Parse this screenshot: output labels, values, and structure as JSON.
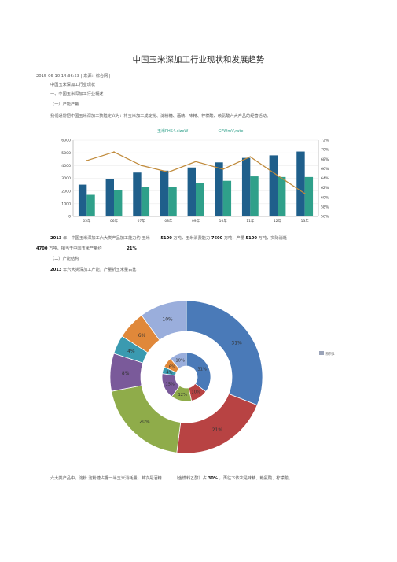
{
  "doc": {
    "title": "中国玉米深加工行业现状和发展趋势",
    "meta": "2015-06-10 14:36:53 | 来源：综合网 |",
    "heading1": "中国玉米深加工行业现状",
    "heading2": "一、中国玉米深加工行业概述",
    "section1": "（一）产能产量",
    "para1": "我们通常把中国玉米深加工狭隘定义为：将玉米加工成淀粉、淀粉糖、酒精、味精、柠檬酸、赖氨酸六大产品的经营活动。",
    "para2_a": "2013",
    "para2_b": "年，中国玉米深加工六大类产品加工能力约 玉米",
    "para2_c": "5100",
    "para2_d": "万吨，玉米消费能力",
    "para2_e": "7600",
    "para2_f": "万吨，产量",
    "para2_g": "5100",
    "para2_h": "万吨，实际消耗",
    "para2_i": "4700",
    "para2_j": "万吨，相当于中国玉米产量约",
    "para2_k": "21%",
    "section2": "（二）产能结构",
    "para3_a": "2013",
    "para3_b": "年六大类深加工产能，产量折玉米量占比",
    "para4_a": "六大类产品中，淀粉",
    "para4_b": "淀粉糖占据一半玉米消耗量，其次是酒精",
    "para4_c": "（含燃料乙醇）占",
    "para4_d": "30%",
    "para4_e": "，再往下依次是味精、赖氨酸、柠檬酸。"
  },
  "chart_data": [
    {
      "type": "bar",
      "legend_text": "玉米PHS4.sizeW ——————— GPWmV,rate",
      "categories": [
        "05年",
        "06年",
        "07年",
        "08年",
        "09年",
        "10年",
        "11年",
        "12年",
        "13年"
      ],
      "series": [
        {
          "values": [
            2500,
            2950,
            3450,
            3600,
            3850,
            4250,
            4600,
            4800,
            5100
          ]
        },
        {
          "values": [
            1700,
            2050,
            2300,
            2350,
            2600,
            2800,
            3150,
            3100,
            3100
          ]
        },
        {
          "values": [
            0.677,
            0.695,
            0.667,
            0.653,
            0.675,
            0.659,
            0.685,
            0.646,
            0.608
          ]
        }
      ],
      "y_ticks": [
        "6000",
        "5000",
        "4000",
        "3000",
        "2000",
        "1000",
        "0"
      ],
      "y2_ticks": [
        "72%",
        "70%",
        "68%",
        "66%",
        "64%",
        "62%",
        "60%",
        "58%",
        "56%"
      ],
      "ylim": [
        0,
        6000
      ],
      "y2lim": [
        0.56,
        0.72
      ],
      "colors": {
        "bar1": "#1f5f8b",
        "bar2": "#2fa08a",
        "line": "#c08a3a"
      }
    },
    {
      "type": "pie",
      "legend_text": "系列1",
      "outer": {
        "labels": [
          "31%",
          "21%",
          "20%",
          "8%",
          "4%",
          "6%",
          "10%"
        ],
        "values": [
          31,
          21,
          20,
          8,
          4,
          6,
          10
        ]
      },
      "inner": {
        "labels": [
          "31%",
          "10%",
          "12%",
          "15%",
          "4%",
          "6%",
          "10%"
        ],
        "values": [
          31,
          10,
          12,
          15,
          4,
          6,
          10
        ]
      },
      "colors": [
        "#4a7ab8",
        "#b84343",
        "#8fac4a",
        "#7a5a9a",
        "#3a9ab0",
        "#e0883a",
        "#9aaedc"
      ]
    }
  ]
}
